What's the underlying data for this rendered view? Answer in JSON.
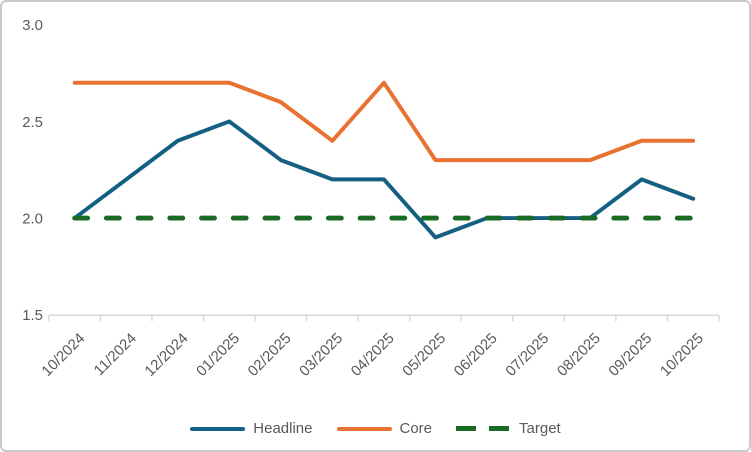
{
  "chart_data": {
    "type": "line",
    "categories": [
      "10/2024",
      "11/2024",
      "12/2024",
      "01/2025",
      "02/2025",
      "03/2025",
      "04/2025",
      "05/2025",
      "06/2025",
      "07/2025",
      "08/2025",
      "09/2025",
      "10/2025"
    ],
    "series": [
      {
        "name": "Headline",
        "color": "#156082",
        "style": "solid",
        "values": [
          2.0,
          2.2,
          2.4,
          2.5,
          2.3,
          2.2,
          2.2,
          1.9,
          2.0,
          2.0,
          2.0,
          2.2,
          2.1
        ]
      },
      {
        "name": "Core",
        "color": "#E97132",
        "style": "solid",
        "values": [
          2.7,
          2.7,
          2.7,
          2.7,
          2.6,
          2.4,
          2.7,
          2.3,
          2.3,
          2.3,
          2.3,
          2.4,
          2.4
        ]
      },
      {
        "name": "Target",
        "color": "#196B24",
        "style": "dashed",
        "values": [
          2.0,
          2.0,
          2.0,
          2.0,
          2.0,
          2.0,
          2.0,
          2.0,
          2.0,
          2.0,
          2.0,
          2.0,
          2.0
        ]
      }
    ],
    "title": "",
    "xlabel": "",
    "ylabel": "",
    "ylim": [
      1.5,
      3.0
    ],
    "yticks": [
      1.5,
      2.0,
      2.5,
      3.0
    ],
    "ytick_labels": [
      "1.5",
      "2.0",
      "2.5",
      "3.0"
    ],
    "grid": false,
    "legend_position": "bottom"
  },
  "colors": {
    "axis_text": "#595959",
    "axis_line": "#D9D9D9",
    "frame_border": "#C9C9C9",
    "background": "#FFFFFF"
  }
}
